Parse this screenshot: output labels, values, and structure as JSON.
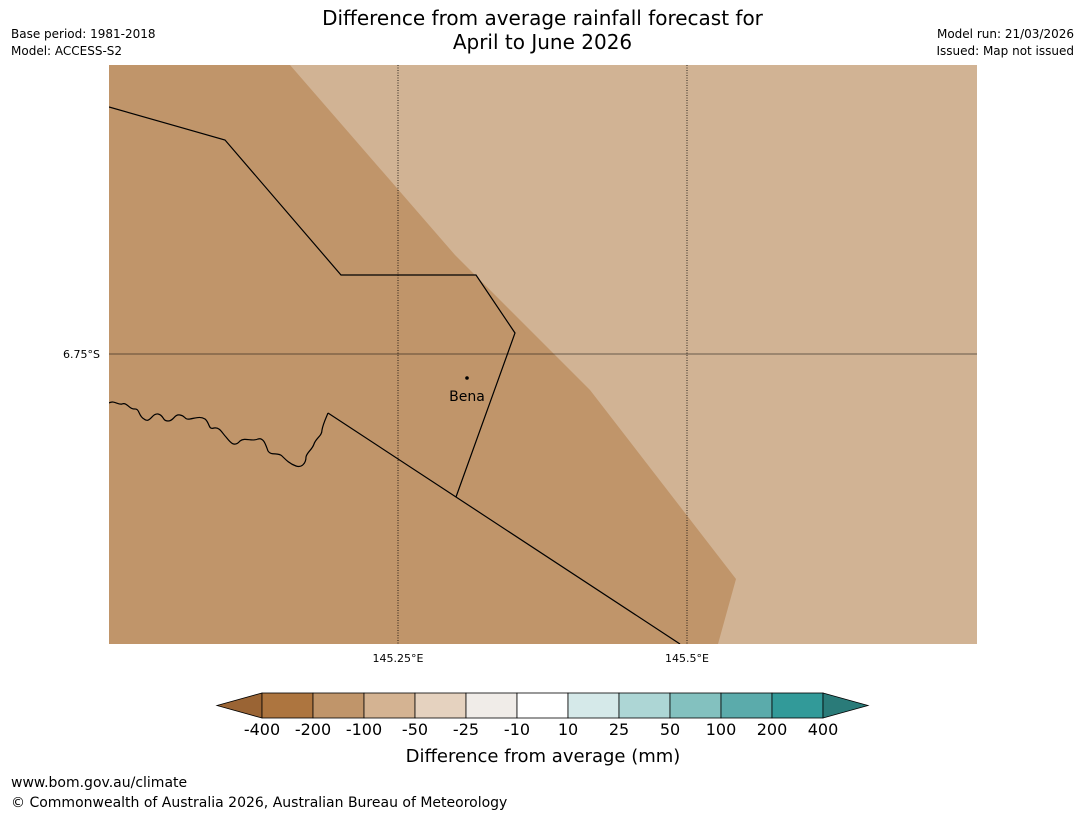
{
  "title_line1": "Difference from average rainfall forecast for",
  "title_line2": "April to June 2026",
  "meta_left": {
    "base_period": "Base period: 1981-2018",
    "model": "Model: ACCESS-S2"
  },
  "meta_right": {
    "model_run": "Model run: 21/03/2026",
    "issued": "Issued: Map not issued"
  },
  "map": {
    "lat_label": "6.75°S",
    "lon_labels": [
      "145.25°E",
      "145.5°E"
    ],
    "place": "Bena",
    "colors": {
      "drier_region": "#c0956a",
      "dry_region": "#d1b394"
    }
  },
  "legend": {
    "title": "Difference from average (mm)",
    "ticks": [
      "-400",
      "-200",
      "-100",
      "-50",
      "-25",
      "-10",
      "10",
      "25",
      "50",
      "100",
      "200",
      "400"
    ],
    "colors": [
      "#9a6434",
      "#ad753f",
      "#c0956a",
      "#d4b392",
      "#e5d2bf",
      "#f0ece8",
      "#ffffff",
      "#d5e9e9",
      "#add6d5",
      "#83c1bf",
      "#5babab",
      "#329a99",
      "#2a7b79"
    ]
  },
  "footer": {
    "url": "www.bom.gov.au/climate",
    "copyright": "© Commonwealth of Australia 2026, Australian Bureau of Meteorology"
  }
}
